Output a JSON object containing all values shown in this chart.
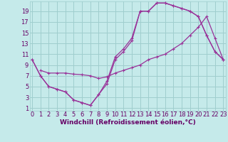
{
  "bg_color": "#c5eaea",
  "grid_color": "#9fcece",
  "line_color": "#993399",
  "xlim_min": -0.3,
  "xlim_max": 23.3,
  "ylim_min": 0.5,
  "ylim_max": 20.8,
  "xticks": [
    0,
    1,
    2,
    3,
    4,
    5,
    6,
    7,
    8,
    9,
    10,
    11,
    12,
    13,
    14,
    15,
    16,
    17,
    18,
    19,
    20,
    21,
    22,
    23
  ],
  "yticks": [
    1,
    3,
    5,
    7,
    9,
    11,
    13,
    15,
    17,
    19
  ],
  "xlabel": "Windchill (Refroidissement éolien,°C)",
  "font_color": "#660066",
  "tick_fontsize": 6,
  "xlabel_fontsize": 6.5,
  "line1_x": [
    0,
    1,
    2,
    3,
    4,
    5,
    6,
    7,
    8,
    9,
    10,
    11,
    12,
    13,
    14,
    15,
    16,
    17,
    18,
    19,
    20,
    21,
    22,
    23
  ],
  "line1_y": [
    10,
    7,
    5,
    4.5,
    4,
    2.5,
    2,
    1.5,
    3.5,
    6,
    10.5,
    12,
    14,
    19,
    19,
    20.5,
    20.5,
    20,
    19.5,
    19,
    18,
    14.5,
    11.5,
    10
  ],
  "line2_x": [
    0,
    1,
    2,
    3,
    4,
    5,
    6,
    7,
    8,
    9,
    10,
    11,
    12,
    13,
    14,
    15,
    16,
    17,
    18,
    19,
    20,
    21,
    22,
    23
  ],
  "line2_y": [
    10,
    7,
    5,
    4.5,
    4,
    2.5,
    2,
    1.5,
    3.5,
    5.5,
    10,
    11.5,
    13.5,
    19,
    19,
    20.5,
    20.5,
    20,
    19.5,
    19,
    18,
    14.5,
    11.5,
    10
  ],
  "line3_x": [
    1,
    2,
    3,
    4,
    5,
    6,
    7,
    8,
    9,
    10,
    11,
    12,
    13,
    14,
    15,
    16,
    17,
    18,
    19,
    20,
    21,
    22,
    23
  ],
  "line3_y": [
    8,
    7.5,
    7.5,
    7.5,
    7.3,
    7.2,
    7.0,
    6.5,
    6.8,
    7.5,
    8,
    8.5,
    9,
    10,
    10.5,
    11,
    12,
    13,
    14.5,
    16,
    18,
    14,
    10
  ]
}
